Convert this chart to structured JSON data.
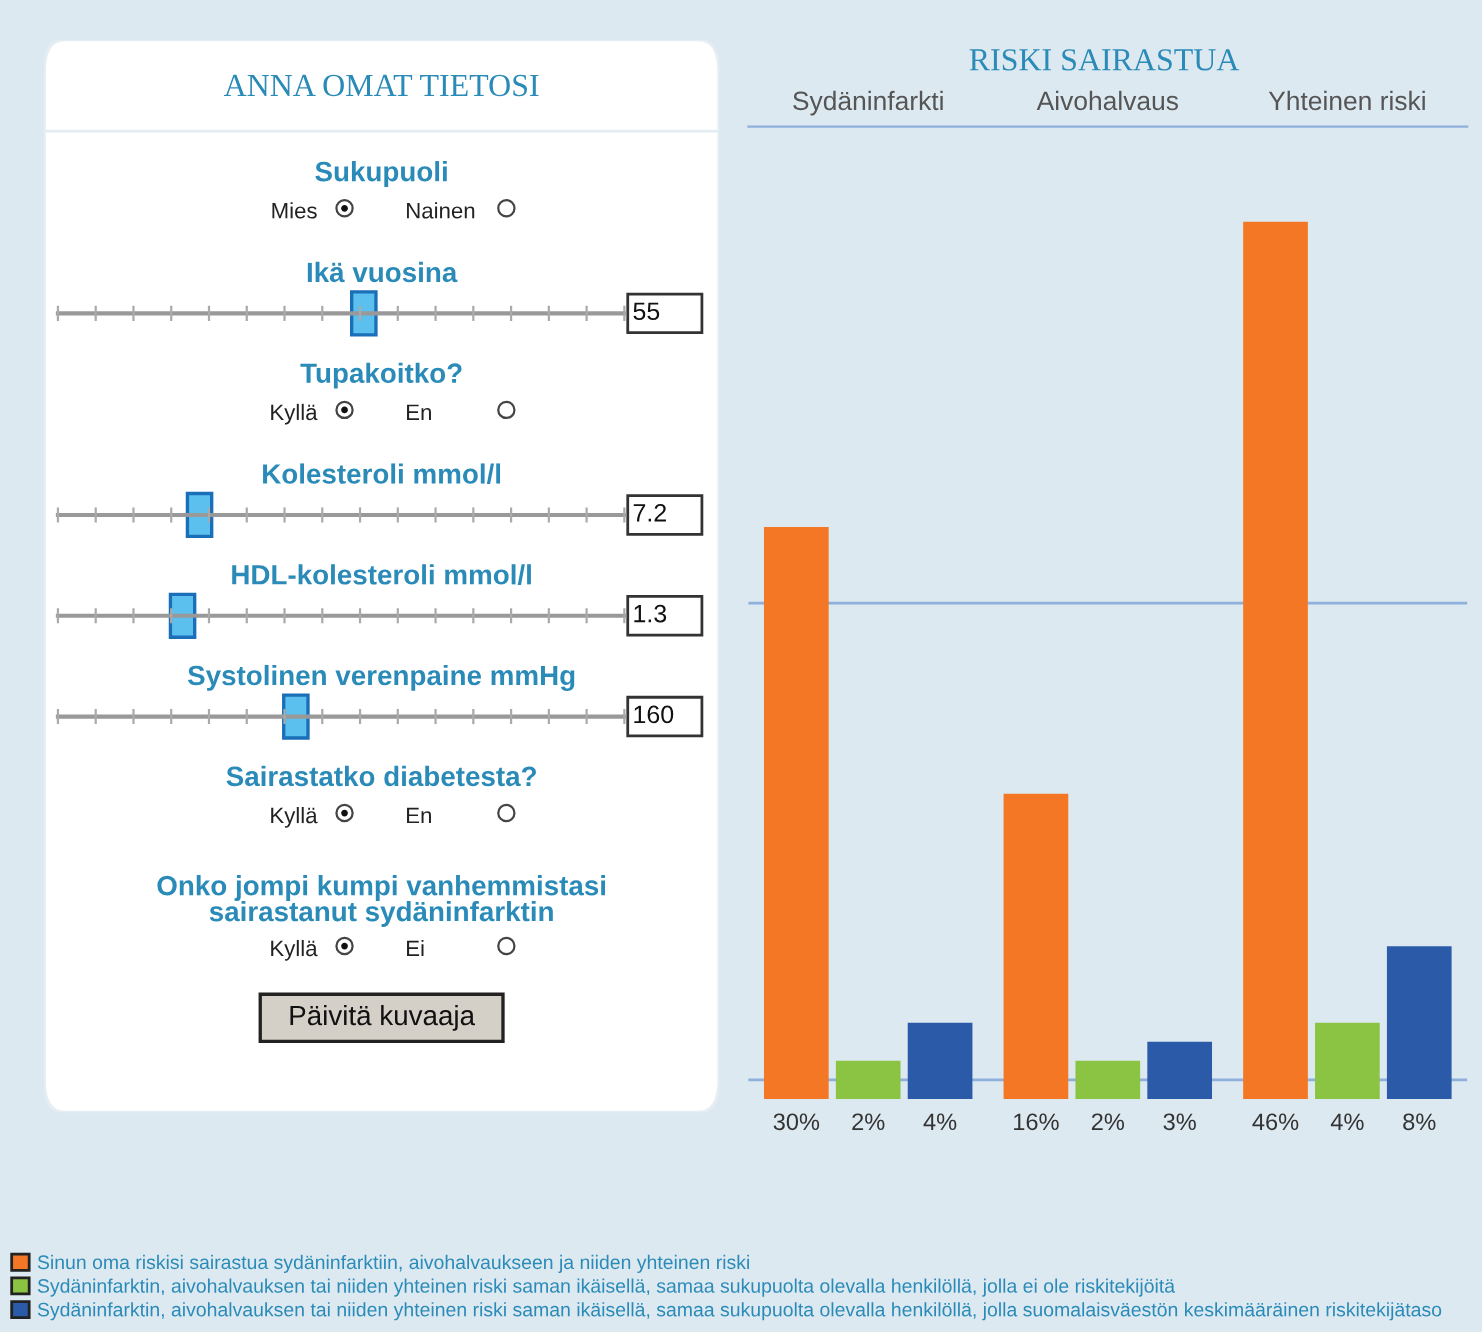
{
  "chart_data": [
    {
      "type": "other",
      "title": "ANNA OMAT TIETOSI",
      "annotations": [
        "Sukupuoli",
        "Mies",
        "Nainen",
        "Ikä vuosina",
        "55",
        "Tupakoitko?",
        "Kyllä",
        "En",
        "Kolesteroli mmol/l",
        "7.2",
        "HDL-kolesteroli mmol/l",
        "1.3",
        "Systolinen verenpaine mmHg",
        "160",
        "Sairastatko diabetesta?",
        "Kyllä",
        "En",
        "Onko jompi kumpi vanhemmistasi\nsairastanut sydäninfarktin",
        "Kyllä",
        "Ei",
        "Päivitä kuvaaja"
      ]
    },
    {
      "type": "bar",
      "title": "RISKI SAIRASTUA",
      "categories": [
        "Sydäninfarkti",
        "Aivohalvaus",
        "Yhteinen riski"
      ],
      "ylim": [
        0,
        51
      ],
      "tick_labels": "x",
      "legend": "bottom",
      "grid": false,
      "series": [
        {
          "name": "Sinun oma riskisi sairastua sydäninfarktiin, aivohalvaukseen ja niiden yhteinen riski",
          "color": "#f47726",
          "values": [
            30,
            16,
            46
          ],
          "value_labels": [
            "30%",
            "16%",
            "46%"
          ]
        },
        {
          "name": "Sydäninfarktin, aivohalvauksen tai niiden yhteinen riski saman ikäisellä, samaa sukupuolta olevalla henkilöllä, jolla ei ole riskitekijöitä",
          "color": "#8bc443",
          "values": [
            2,
            2,
            4
          ],
          "value_labels": [
            "2%",
            "2%",
            "4%"
          ]
        },
        {
          "name": "Sydäninfarktin, aivohalvauksen tai niiden yhteinen riski saman ikäisellä, samaa sukupuolta olevalla henkilöllä, jolla suomalaisväestön keskimääräinen riskitekijätaso",
          "color": "#2a5aa8",
          "values": [
            4,
            3,
            8
          ],
          "value_labels": [
            "4%",
            "3%",
            "8%"
          ]
        }
      ],
      "ref_lines": [
        {
          "axis": "y",
          "value": 26,
          "color": "#8fb0dc"
        },
        {
          "axis": "y",
          "value": 1,
          "color": "#8fb0dc"
        }
      ]
    }
  ]
}
